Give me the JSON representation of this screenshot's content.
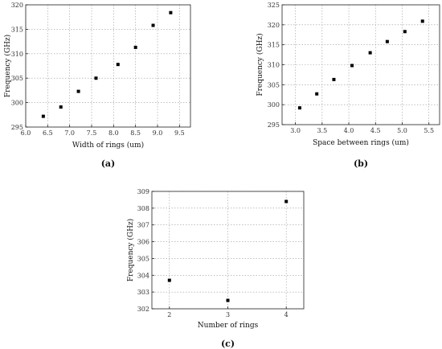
{
  "chart_data": [
    {
      "type": "scatter",
      "panel_label": "(a)",
      "xlabel": "Width of rings (um)",
      "ylabel": "Frequency (GHz)",
      "xlim": [
        6.0,
        9.75
      ],
      "ylim": [
        295,
        320
      ],
      "xticks": [
        6.0,
        6.5,
        7.0,
        7.5,
        8.0,
        8.5,
        9.0,
        9.5
      ],
      "xtick_labels": [
        "6.0",
        "6.5",
        "7.0",
        "7.5",
        "8.0",
        "8.5",
        "9.0",
        "9.5"
      ],
      "yticks": [
        295,
        300,
        305,
        310,
        315,
        320
      ],
      "ytick_labels": [
        "295",
        "300",
        "305",
        "310",
        "315",
        "320"
      ],
      "grid": true,
      "marker": "square",
      "color": "#000000",
      "x": [
        6.4,
        6.8,
        7.2,
        7.6,
        8.1,
        8.5,
        8.9,
        9.3
      ],
      "y": [
        297.2,
        299.1,
        302.3,
        305.0,
        307.8,
        311.3,
        315.8,
        318.4
      ]
    },
    {
      "type": "scatter",
      "panel_label": "(b)",
      "xlabel": "Space between rings (um)",
      "ylabel": "Frequency (GHz)",
      "xlim": [
        2.75,
        5.7
      ],
      "ylim": [
        295,
        325
      ],
      "xticks": [
        3.0,
        3.5,
        4.0,
        4.5,
        5.0,
        5.5
      ],
      "xtick_labels": [
        "3.0",
        "3.5",
        "4.0",
        "4.5",
        "5.0",
        "5.5"
      ],
      "yticks": [
        295,
        300,
        305,
        310,
        315,
        320,
        325
      ],
      "ytick_labels": [
        "295",
        "300",
        "305",
        "310",
        "315",
        "320",
        "325"
      ],
      "grid": true,
      "marker": "square",
      "color": "#000000",
      "x": [
        3.08,
        3.4,
        3.72,
        4.06,
        4.4,
        4.72,
        5.05,
        5.38
      ],
      "y": [
        299.2,
        302.7,
        306.3,
        309.8,
        313.0,
        315.8,
        318.3,
        320.9
      ]
    },
    {
      "type": "scatter",
      "panel_label": "(c)",
      "xlabel": "Number of rings",
      "ylabel": "Frequency (GHz)",
      "xlim": [
        1.7,
        4.3
      ],
      "ylim": [
        302,
        309
      ],
      "xticks": [
        2,
        3,
        4
      ],
      "xtick_labels": [
        "2",
        "3",
        "4"
      ],
      "yticks": [
        302,
        303,
        304,
        305,
        306,
        307,
        308,
        309
      ],
      "ytick_labels": [
        "302",
        "303",
        "304",
        "305",
        "306",
        "307",
        "308",
        "309"
      ],
      "grid": true,
      "marker": "square",
      "color": "#000000",
      "x": [
        2,
        3,
        4
      ],
      "y": [
        303.7,
        302.5,
        308.4
      ]
    }
  ]
}
